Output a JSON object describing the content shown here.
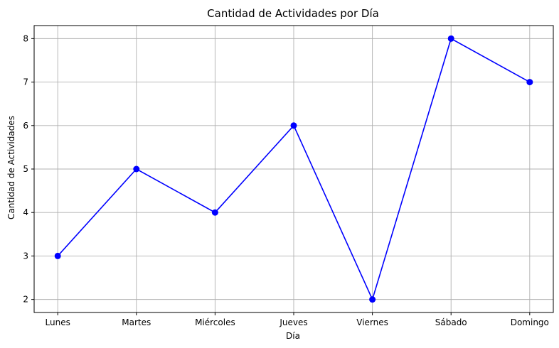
{
  "chart_data": {
    "type": "line",
    "title": "Cantidad de Actividades por Día",
    "xlabel": "Día",
    "ylabel": "Cantidad de Actividades",
    "categories": [
      "Lunes",
      "Martes",
      "Miércoles",
      "Jueves",
      "Viernes",
      "Sábado",
      "Domingo"
    ],
    "values": [
      3,
      5,
      4,
      6,
      2,
      8,
      7
    ],
    "ylim": [
      1.7,
      8.3
    ],
    "yticks": [
      2,
      3,
      4,
      5,
      6,
      7,
      8
    ],
    "grid": true,
    "marker": "circle",
    "line_color": "#0000ff"
  }
}
